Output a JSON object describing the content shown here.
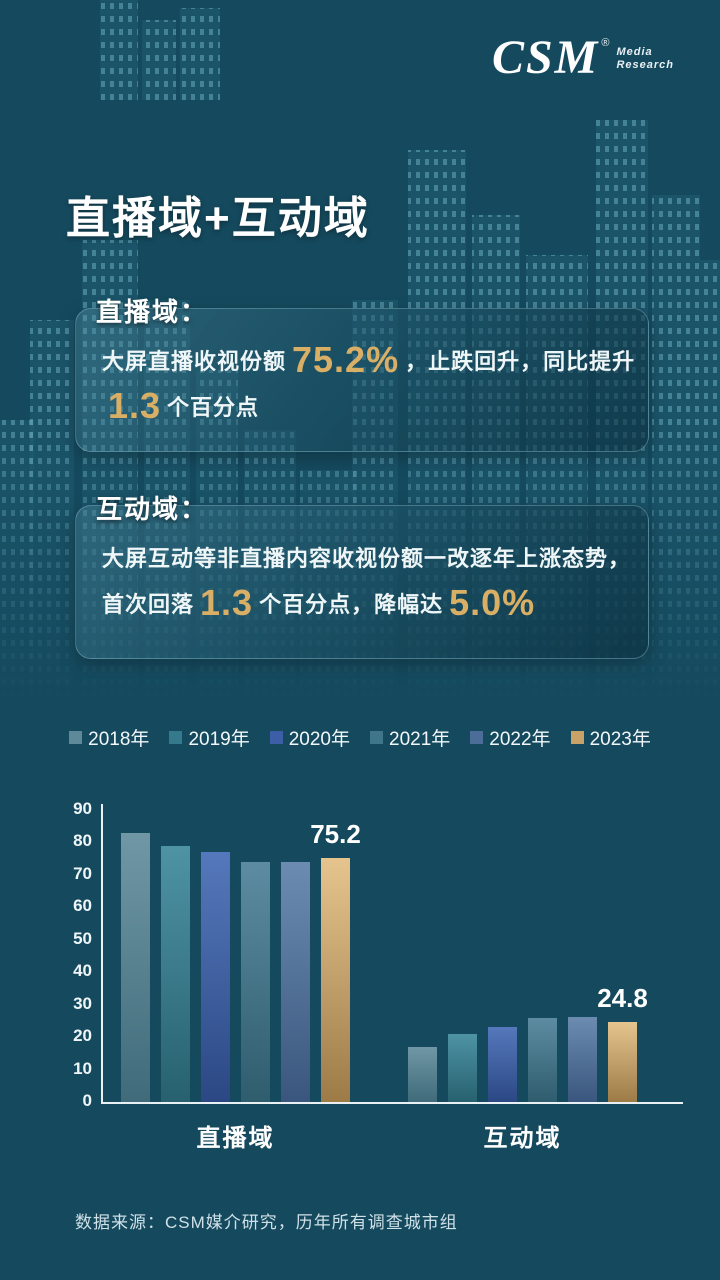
{
  "logo": {
    "text": "CSM",
    "reg": "®",
    "sub_top": "Media",
    "sub_bottom": "Research"
  },
  "title": "直播域+互动域",
  "box1": {
    "label": "直播域：",
    "line1_a": "大屏直播收视份额",
    "line1_num": "75.2%",
    "line1_b": "，止跌回升，同比提升",
    "line2_num": "1.3",
    "line2_b": "个百分点"
  },
  "box2": {
    "label": "互动域：",
    "line1": "大屏互动等非直播内容收视份额一改逐年上涨态势，",
    "line2_a": "首次回落",
    "line2_num": "1.3",
    "line2_b": "个百分点，降幅达",
    "line2_num2": "5.0%"
  },
  "chart_data": {
    "type": "bar",
    "title": "",
    "categories": [
      "直播域",
      "互动域"
    ],
    "series": [
      {
        "name": "2018年",
        "values": [
          83,
          17
        ],
        "legend_color": "#5d8999",
        "color_top": "#7097a5",
        "color_bottom": "#3f6b7a"
      },
      {
        "name": "2019年",
        "values": [
          79,
          21
        ],
        "legend_color": "#35798c",
        "color_top": "#4e93a4",
        "color_bottom": "#27616f"
      },
      {
        "name": "2020年",
        "values": [
          77,
          23
        ],
        "legend_color": "#3b5ea6",
        "color_top": "#5578bc",
        "color_bottom": "#2b4884"
      },
      {
        "name": "2021年",
        "values": [
          74,
          26
        ],
        "legend_color": "#40768a",
        "color_top": "#5d8ba1",
        "color_bottom": "#2f5d6e"
      },
      {
        "name": "2022年",
        "values": [
          73.9,
          26.1
        ],
        "legend_color": "#4d6d99",
        "color_top": "#6b8cb0",
        "color_bottom": "#3a567e"
      },
      {
        "name": "2023年",
        "values": [
          75.2,
          24.8
        ],
        "legend_color": "#c8a266",
        "color_top": "#e6c48e",
        "color_bottom": "#9c7b47"
      }
    ],
    "ylim": [
      0,
      90
    ],
    "yticks": [
      0,
      10,
      20,
      30,
      40,
      50,
      60,
      70,
      80,
      90
    ],
    "annotations": [
      {
        "category_index": 0,
        "series_index": 5,
        "text": "75.2"
      },
      {
        "category_index": 1,
        "series_index": 5,
        "text": "24.8"
      }
    ],
    "legend_position": "top",
    "grid": false
  },
  "footer": "数据来源：CSM媒介研究，历年所有调查城市组"
}
